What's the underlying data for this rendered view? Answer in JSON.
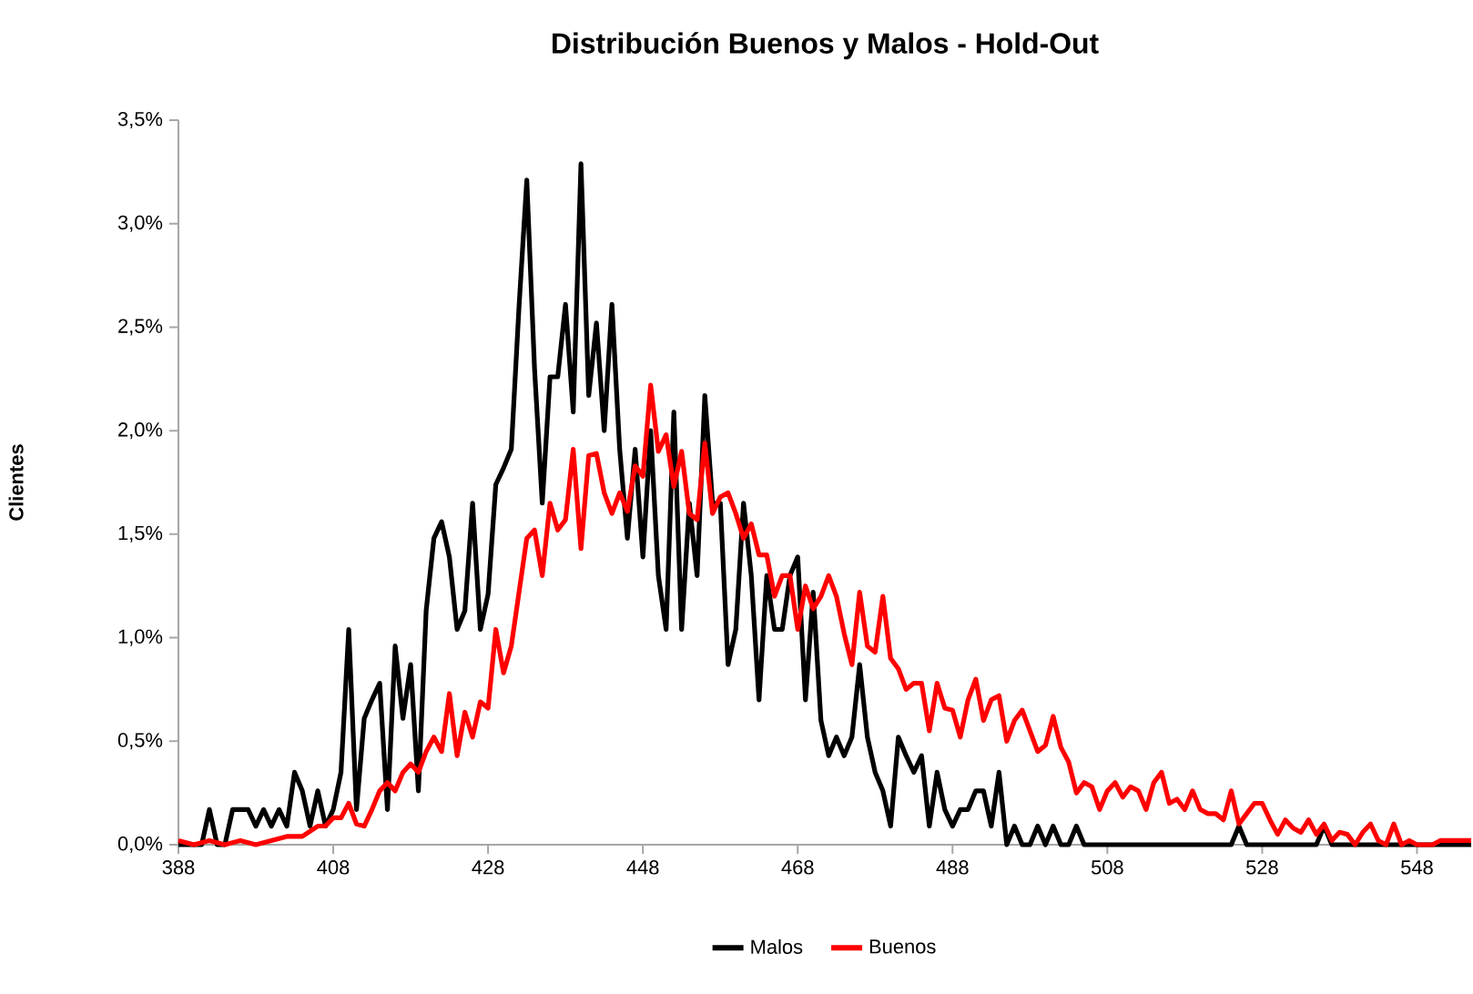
{
  "chart_data": {
    "type": "line",
    "title": "Distribución Buenos y Malos - Hold-Out",
    "ylabel": "Clientes",
    "xlim": [
      388,
      555
    ],
    "ylim": [
      0,
      3.5
    ],
    "xticks": [
      388,
      408,
      428,
      448,
      468,
      488,
      508,
      528,
      548
    ],
    "yticks": [
      {
        "value": 0,
        "label": "0,0%"
      },
      {
        "value": 0.5,
        "label": "0,5%"
      },
      {
        "value": 1,
        "label": "1,0%"
      },
      {
        "value": 1.5,
        "label": "1,5%"
      },
      {
        "value": 2,
        "label": "2,0%"
      },
      {
        "value": 2.5,
        "label": "2,5%"
      },
      {
        "value": 3,
        "label": "3,0%"
      },
      {
        "value": 3.5,
        "label": "3,5%"
      }
    ],
    "legend": "bottom",
    "grid": false,
    "marker": "none",
    "line_style": "solid",
    "series": [
      {
        "name": "Malos",
        "color": "#000000",
        "x": [
          388,
          391,
          392,
          393,
          394,
          395,
          397,
          398,
          399,
          400,
          401,
          402,
          403,
          404,
          405,
          406,
          407,
          408,
          409,
          410,
          411,
          412,
          413,
          414,
          415,
          416,
          417,
          418,
          419,
          420,
          421,
          422,
          423,
          424,
          425,
          426,
          427,
          428,
          429,
          430,
          431,
          432,
          433,
          434,
          435,
          436,
          437,
          438,
          439,
          440,
          441,
          442,
          443,
          444,
          445,
          446,
          447,
          448,
          449,
          450,
          451,
          452,
          453,
          454,
          455,
          456,
          457,
          458,
          459,
          460,
          461,
          462,
          463,
          464,
          465,
          466,
          467,
          468,
          469,
          470,
          471,
          472,
          473,
          474,
          475,
          476,
          477,
          478,
          479,
          480,
          481,
          482,
          483,
          484,
          485,
          486,
          487,
          488,
          489,
          490,
          491,
          492,
          493,
          494,
          495,
          496,
          497,
          498,
          499,
          500,
          501,
          502,
          503,
          504,
          505,
          524,
          525,
          526,
          535,
          536,
          537,
          555
        ],
        "values": [
          0,
          0,
          0.17,
          0,
          0,
          0.17,
          0.17,
          0.09,
          0.17,
          0.09,
          0.17,
          0.09,
          0.35,
          0.26,
          0.09,
          0.26,
          0.09,
          0.17,
          0.35,
          1.04,
          0.17,
          0.61,
          0.7,
          0.78,
          0.17,
          0.96,
          0.61,
          0.87,
          0.26,
          1.13,
          1.48,
          1.56,
          1.39,
          1.04,
          1.13,
          1.65,
          1.04,
          1.21,
          1.74,
          1.82,
          1.91,
          2.6,
          3.21,
          2.3,
          1.65,
          2.26,
          2.26,
          2.61,
          2.09,
          3.29,
          2.17,
          2.52,
          2,
          2.61,
          1.91,
          1.48,
          1.91,
          1.39,
          2,
          1.3,
          1.04,
          2.09,
          1.04,
          1.65,
          1.3,
          2.17,
          1.65,
          1.65,
          0.87,
          1.04,
          1.65,
          1.3,
          0.7,
          1.3,
          1.04,
          1.04,
          1.3,
          1.39,
          0.7,
          1.22,
          0.6,
          0.43,
          0.52,
          0.43,
          0.52,
          0.87,
          0.52,
          0.35,
          0.26,
          0.09,
          0.52,
          0.43,
          0.35,
          0.43,
          0.09,
          0.35,
          0.17,
          0.09,
          0.17,
          0.17,
          0.26,
          0.26,
          0.09,
          0.35,
          0,
          0.09,
          0,
          0,
          0.09,
          0,
          0.09,
          0,
          0,
          0.09,
          0,
          0,
          0.09,
          0,
          0,
          0.09,
          0,
          0
        ]
      },
      {
        "name": "Buenos",
        "color": "#ff0000",
        "x": [
          388,
          390,
          392,
          394,
          396,
          398,
          400,
          402,
          404,
          406,
          407,
          408,
          409,
          410,
          411,
          412,
          413,
          414,
          415,
          416,
          417,
          418,
          419,
          420,
          421,
          422,
          423,
          424,
          425,
          426,
          427,
          428,
          429,
          430,
          431,
          432,
          433,
          434,
          435,
          436,
          437,
          438,
          439,
          440,
          441,
          442,
          443,
          444,
          445,
          446,
          447,
          448,
          449,
          450,
          451,
          452,
          453,
          454,
          455,
          456,
          457,
          458,
          459,
          460,
          461,
          462,
          463,
          464,
          465,
          466,
          467,
          468,
          469,
          470,
          471,
          472,
          473,
          474,
          475,
          476,
          477,
          478,
          479,
          480,
          481,
          482,
          483,
          484,
          485,
          486,
          487,
          488,
          489,
          490,
          491,
          492,
          493,
          494,
          495,
          496,
          497,
          498,
          499,
          500,
          501,
          502,
          503,
          504,
          505,
          506,
          507,
          508,
          509,
          510,
          511,
          512,
          513,
          514,
          515,
          516,
          517,
          518,
          519,
          520,
          521,
          522,
          523,
          524,
          525,
          526,
          527,
          528,
          529,
          530,
          531,
          532,
          533,
          534,
          535,
          536,
          537,
          538,
          539,
          540,
          541,
          542,
          543,
          544,
          545,
          546,
          547,
          548,
          550,
          551,
          555
        ],
        "values": [
          0.02,
          0,
          0.02,
          0,
          0.02,
          0,
          0.02,
          0.04,
          0.04,
          0.09,
          0.09,
          0.13,
          0.13,
          0.2,
          0.1,
          0.09,
          0.17,
          0.26,
          0.3,
          0.26,
          0.35,
          0.39,
          0.35,
          0.45,
          0.52,
          0.45,
          0.73,
          0.43,
          0.64,
          0.52,
          0.69,
          0.66,
          1.04,
          0.83,
          0.96,
          1.22,
          1.48,
          1.52,
          1.3,
          1.65,
          1.52,
          1.57,
          1.91,
          1.43,
          1.88,
          1.89,
          1.7,
          1.6,
          1.7,
          1.61,
          1.83,
          1.78,
          2.22,
          1.9,
          1.98,
          1.73,
          1.9,
          1.6,
          1.57,
          1.94,
          1.6,
          1.68,
          1.7,
          1.6,
          1.48,
          1.55,
          1.4,
          1.4,
          1.2,
          1.3,
          1.3,
          1.04,
          1.25,
          1.14,
          1.2,
          1.3,
          1.2,
          1.02,
          0.87,
          1.22,
          0.96,
          0.93,
          1.2,
          0.9,
          0.85,
          0.75,
          0.78,
          0.78,
          0.55,
          0.78,
          0.66,
          0.65,
          0.52,
          0.7,
          0.8,
          0.6,
          0.7,
          0.72,
          0.5,
          0.6,
          0.65,
          0.55,
          0.45,
          0.48,
          0.62,
          0.47,
          0.4,
          0.25,
          0.3,
          0.28,
          0.17,
          0.26,
          0.3,
          0.23,
          0.28,
          0.26,
          0.17,
          0.3,
          0.35,
          0.2,
          0.22,
          0.17,
          0.26,
          0.17,
          0.15,
          0.15,
          0.12,
          0.26,
          0.1,
          0.15,
          0.2,
          0.2,
          0.12,
          0.05,
          0.12,
          0.08,
          0.06,
          0.12,
          0.05,
          0.1,
          0.02,
          0.06,
          0.05,
          0,
          0.06,
          0.1,
          0.02,
          0,
          0.1,
          0,
          0.02,
          0,
          0,
          0.02,
          0.02
        ]
      }
    ]
  }
}
